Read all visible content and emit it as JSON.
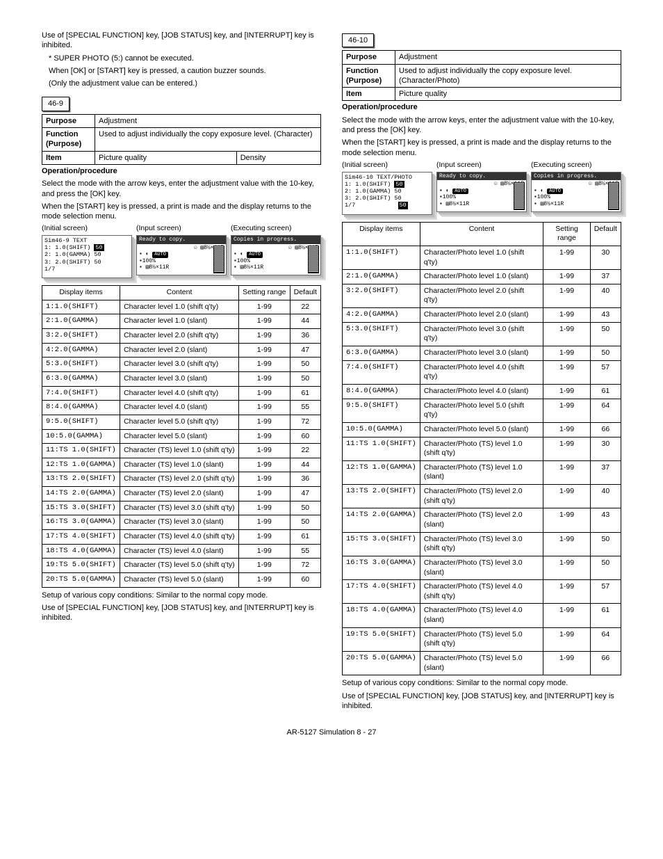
{
  "left": {
    "intro1": "Use of [SPECIAL FUNCTION] key, [JOB STATUS] key, and [INTERRUPT] key is inhibited.",
    "asterisk": "* SUPER PHOTO (5:) cannot be executed.",
    "note1": "When [OK] or [START] key is pressed, a caution buzzer sounds.",
    "note2": "(Only the adjustment value can be entered.)",
    "code": "46-9",
    "info": {
      "purpose_label": "Purpose",
      "purpose": "Adjustment",
      "function_label": "Function (Purpose)",
      "function": "Used to adjust individually the copy exposure level. (Character)",
      "item_label": "Item",
      "item1": "Picture quality",
      "item2": "Density"
    },
    "oph": "Operation/procedure",
    "op1": "Select the mode with the arrow keys, enter the adjustment value with the 10-key, and press the [OK] key.",
    "op2": "When the [START] key is pressed, a print is made and the display returns to the mode selection menu.",
    "scr1": "(Initial screen)",
    "scr2": "(Input screen)",
    "scr3": "(Executing screen)",
    "lcd1_title": "Sim46-9 TEXT",
    "lcd1_l1": "1:   1.0(SHIFT)",
    "lcd1_v1": "50",
    "lcd1_l2": "2:   1.0(GAMMA) 50",
    "lcd1_l3": "3:   2.0(SHIFT) 50",
    "lcd1_l4": "1/7",
    "lcd2_top": "Ready to copy.",
    "lcd3_top": "Copies in progress.",
    "lcd_paper": "8½×11R",
    "lcd_auto": "AUTO",
    "lcd_100": "▪100%",
    "lcd_tray": "▪ 8½×11R",
    "table_h1": "Display items",
    "table_h2": "Content",
    "table_h3": "Setting range",
    "table_h4": "Default",
    "rows": [
      [
        "1:1.0(SHIFT)",
        "Character level 1.0 (shift q'ty)",
        "1-99",
        "22"
      ],
      [
        "2:1.0(GAMMA)",
        "Character level 1.0 (slant)",
        "1-99",
        "44"
      ],
      [
        "3:2.0(SHIFT)",
        "Character level 2.0 (shift q'ty)",
        "1-99",
        "36"
      ],
      [
        "4:2.0(GAMMA)",
        "Character level 2.0 (slant)",
        "1-99",
        "47"
      ],
      [
        "5:3.0(SHIFT)",
        "Character level 3.0 (shift q'ty)",
        "1-99",
        "50"
      ],
      [
        "6:3.0(GAMMA)",
        "Character level 3.0 (slant)",
        "1-99",
        "50"
      ],
      [
        "7:4.0(SHIFT)",
        "Character level 4.0 (shift q'ty)",
        "1-99",
        "61"
      ],
      [
        "8:4.0(GAMMA)",
        "Character level 4.0 (slant)",
        "1-99",
        "55"
      ],
      [
        "9:5.0(SHIFT)",
        "Character level 5.0 (shift q'ty)",
        "1-99",
        "72"
      ],
      [
        "10:5.0(GAMMA)",
        "Character level 5.0 (slant)",
        "1-99",
        "60"
      ],
      [
        "11:TS 1.0(SHIFT)",
        "Character (TS) level 1.0 (shift q'ty)",
        "1-99",
        "22"
      ],
      [
        "12:TS 1.0(GAMMA)",
        "Character (TS) level 1.0 (slant)",
        "1-99",
        "44"
      ],
      [
        "13:TS 2.0(SHIFT)",
        "Character (TS) level 2.0 (shift q'ty)",
        "1-99",
        "36"
      ],
      [
        "14:TS 2.0(GAMMA)",
        "Character (TS) level 2.0 (slant)",
        "1-99",
        "47"
      ],
      [
        "15:TS 3.0(SHIFT)",
        "Character (TS) level 3.0 (shift q'ty)",
        "1-99",
        "50"
      ],
      [
        "16:TS 3.0(GAMMA)",
        "Character (TS) level 3.0 (slant)",
        "1-99",
        "50"
      ],
      [
        "17:TS 4.0(SHIFT)",
        "Character (TS) level 4.0 (shift q'ty)",
        "1-99",
        "61"
      ],
      [
        "18:TS 4.0(GAMMA)",
        "Character (TS) level 4.0 (slant)",
        "1-99",
        "55"
      ],
      [
        "19:TS 5.0(SHIFT)",
        "Character (TS) level 5.0 (shift q'ty)",
        "1-99",
        "72"
      ],
      [
        "20:TS 5.0(GAMMA)",
        "Character (TS) level 5.0 (slant)",
        "1-99",
        "60"
      ]
    ],
    "foot1": "Setup of various copy conditions: Similar to the normal copy mode.",
    "foot2": "Use of [SPECIAL FUNCTION] key, [JOB STATUS] key, and [INTERRUPT] key is inhibited."
  },
  "right": {
    "code": "46-10",
    "info": {
      "purpose_label": "Purpose",
      "purpose": "Adjustment",
      "function_label": "Function (Purpose)",
      "function": "Used to adjust individually the copy exposure level. (Character/Photo)",
      "item_label": "Item",
      "item1": "Picture quality"
    },
    "oph": "Operation/procedure",
    "op1": "Select the mode with the arrow keys, enter the adjustment value with the 10-key, and press the [OK] key.",
    "op2": "When the [START] key is pressed, a print is made and the display returns to the mode selection menu.",
    "scr1": "(Initial screen)",
    "scr2": "(Input screen)",
    "scr3": "(Executing screen)",
    "lcd1_title": "Sim46-10 TEXT/PHOTO",
    "lcd1_l1": "1:   1.0(SHIFT)",
    "lcd1_v1": "50",
    "lcd1_l2": "2:   1.0(GAMMA) 50",
    "lcd1_l3": "3:   2.0(SHIFT) 50",
    "lcd1_l4": "1/7",
    "lcd1_v4": "50",
    "lcd2_top": "Ready to copy.",
    "lcd3_top": "Copies in progress.",
    "lcd_paper": "8½×11R",
    "lcd_auto": "AUTO",
    "lcd_100": "▪100%",
    "lcd_tray": "▪ 8½×11R",
    "table_h1": "Display items",
    "table_h2": "Content",
    "table_h3": "Setting range",
    "table_h4": "Default",
    "rows": [
      [
        "1:1.0(SHIFT)",
        "Character/Photo level 1.0 (shift q'ty)",
        "1-99",
        "30"
      ],
      [
        "2:1.0(GAMMA)",
        "Character/Photo level 1.0 (slant)",
        "1-99",
        "37"
      ],
      [
        "3:2.0(SHIFT)",
        "Character/Photo level 2.0 (shift q'ty)",
        "1-99",
        "40"
      ],
      [
        "4:2.0(GAMMA)",
        "Character/Photo level 2.0 (slant)",
        "1-99",
        "43"
      ],
      [
        "5:3.0(SHIFT)",
        "Character/Photo level 3.0 (shift q'ty)",
        "1-99",
        "50"
      ],
      [
        "6:3.0(GAMMA)",
        "Character/Photo level 3.0 (slant)",
        "1-99",
        "50"
      ],
      [
        "7:4.0(SHIFT)",
        "Character/Photo level 4.0 (shift q'ty)",
        "1-99",
        "57"
      ],
      [
        "8:4.0(GAMMA)",
        "Character/Photo level 4.0 (slant)",
        "1-99",
        "61"
      ],
      [
        "9:5.0(SHIFT)",
        "Character/Photo level 5.0 (shift q'ty)",
        "1-99",
        "64"
      ],
      [
        "10:5.0(GAMMA)",
        "Character/Photo level 5.0 (slant)",
        "1-99",
        "66"
      ],
      [
        "11:TS 1.0(SHIFT)",
        "Character/Photo (TS) level 1.0 (shift q'ty)",
        "1-99",
        "30"
      ],
      [
        "12:TS 1.0(GAMMA)",
        "Character/Photo (TS) level 1.0 (slant)",
        "1-99",
        "37"
      ],
      [
        "13:TS 2.0(SHIFT)",
        "Character/Photo (TS) level 2.0 (shift q'ty)",
        "1-99",
        "40"
      ],
      [
        "14:TS 2.0(GAMMA)",
        "Character/Photo (TS) level 2.0 (slant)",
        "1-99",
        "43"
      ],
      [
        "15:TS 3.0(SHIFT)",
        "Character/Photo (TS) level 3.0 (shift q'ty)",
        "1-99",
        "50"
      ],
      [
        "16:TS 3.0(GAMMA)",
        "Character/Photo (TS) level 3.0 (slant)",
        "1-99",
        "50"
      ],
      [
        "17:TS 4.0(SHIFT)",
        "Character/Photo (TS) level 4.0 (shift q'ty)",
        "1-99",
        "57"
      ],
      [
        "18:TS 4.0(GAMMA)",
        "Character/Photo (TS) level 4.0 (slant)",
        "1-99",
        "61"
      ],
      [
        "19:TS 5.0(SHIFT)",
        "Character/Photo (TS) level 5.0 (shift q'ty)",
        "1-99",
        "64"
      ],
      [
        "20:TS 5.0(GAMMA)",
        "Character/Photo (TS) level 5.0 (slant)",
        "1-99",
        "66"
      ]
    ],
    "foot1": "Setup of various copy conditions: Similar to the normal copy mode.",
    "foot2": "Use of [SPECIAL FUNCTION] key, [JOB STATUS] key, and [INTERRUPT] key is inhibited."
  },
  "footer": "AR-5127 Simulation 8 - 27"
}
